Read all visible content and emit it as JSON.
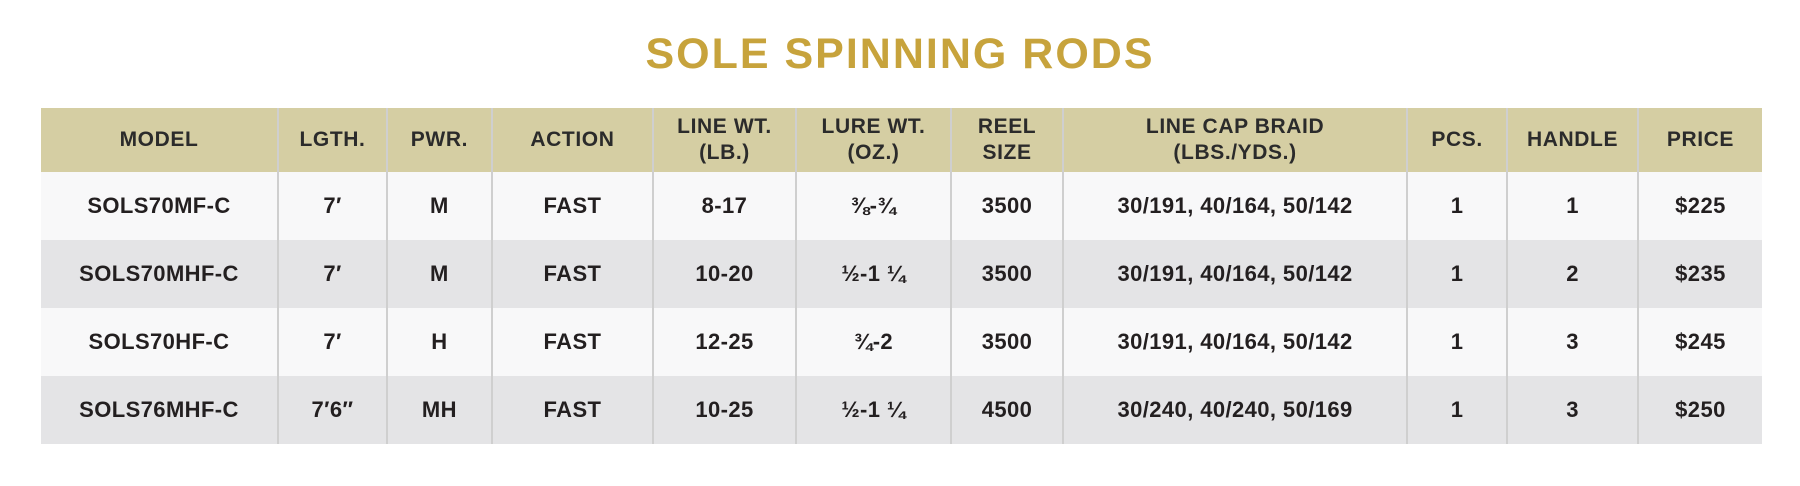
{
  "title": "SOLE SPINNING RODS",
  "colors": {
    "title_gold": "#C7A33C",
    "header_background": "#D5CEA3",
    "row_light": "#F8F8F9",
    "row_dark": "#E4E4E6",
    "text": "#231F20",
    "divider": "#CFCFCF"
  },
  "table": {
    "columns": [
      {
        "id": "model",
        "label": "MODEL",
        "sub": ""
      },
      {
        "id": "length",
        "label": "LGTH.",
        "sub": ""
      },
      {
        "id": "power",
        "label": "PWR.",
        "sub": ""
      },
      {
        "id": "action",
        "label": "ACTION",
        "sub": ""
      },
      {
        "id": "line-wt",
        "label": "LINE WT.",
        "sub": "(LB.)"
      },
      {
        "id": "lure-wt",
        "label": "LURE WT.",
        "sub": "(OZ.)"
      },
      {
        "id": "reel",
        "label": "REEL",
        "sub": "SIZE"
      },
      {
        "id": "braid",
        "label": "LINE CAP BRAID",
        "sub": "(LBS./YDS.)"
      },
      {
        "id": "pcs",
        "label": "PCS.",
        "sub": ""
      },
      {
        "id": "handle",
        "label": "HANDLE",
        "sub": ""
      },
      {
        "id": "price",
        "label": "PRICE",
        "sub": ""
      }
    ],
    "rows": [
      [
        "SOLS70MF-C",
        "7′",
        "M",
        "FAST",
        "8-17",
        "⅜-¾",
        "3500",
        "30/191, 40/164, 50/142",
        "1",
        "1",
        "$225"
      ],
      [
        "SOLS70MHF-C",
        "7′",
        "M",
        "FAST",
        "10-20",
        "½-1 ¼",
        "3500",
        "30/191, 40/164, 50/142",
        "1",
        "2",
        "$235"
      ],
      [
        "SOLS70HF-C",
        "7′",
        "H",
        "FAST",
        "12-25",
        "¾-2",
        "3500",
        "30/191, 40/164, 50/142",
        "1",
        "3",
        "$245"
      ],
      [
        "SOLS76MHF-C",
        "7′6″",
        "MH",
        "FAST",
        "10-25",
        "½-1 ¼",
        "4500",
        "30/240, 40/240, 50/169",
        "1",
        "3",
        "$250"
      ]
    ]
  }
}
